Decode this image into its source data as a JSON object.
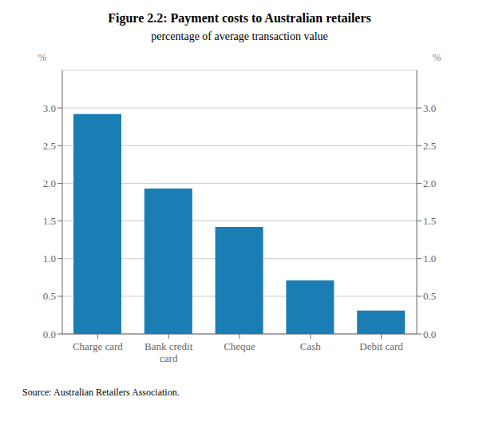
{
  "chart_data": {
    "type": "bar",
    "title": "Figure 2.2:  Payment costs to Australian retailers",
    "subtitle": "percentage of average transaction value",
    "categories": [
      "Charge card",
      "Bank credit\ncard",
      "Cheque",
      "Cash",
      "Debit card"
    ],
    "values": [
      2.92,
      1.93,
      1.42,
      0.71,
      0.31
    ],
    "color": "#1a7eb5",
    "ylim": [
      0,
      3.5
    ],
    "yticks": [
      {
        "value": 0.0,
        "label": "0.0"
      },
      0.5,
      {
        "value": 1.0,
        "label": "1.0"
      },
      1.5,
      {
        "value": 2.0,
        "label": "2.0"
      },
      2.5,
      {
        "value": 3.0,
        "label": "3.0"
      }
    ],
    "y2lim": [
      0,
      3.5
    ],
    "y2ticks": [
      {
        "value": 0.0,
        "label": "0.0"
      },
      0.5,
      {
        "value": 1.0,
        "label": "1.0"
      },
      1.5,
      {
        "value": 2.0,
        "label": "2.0"
      },
      2.5,
      {
        "value": 3.0,
        "label": "3.0"
      }
    ],
    "ylabel": "%",
    "y2label": "%",
    "source": "Source:  Australian Retailers Association.",
    "grid": true
  }
}
